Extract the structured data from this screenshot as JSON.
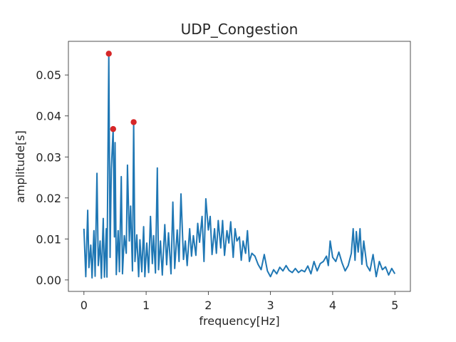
{
  "chart_data": {
    "type": "line",
    "title": "UDP_Congestion",
    "xlabel": "frequency[Hz]",
    "ylabel": "amplitude[s]",
    "xlim": [
      -0.25,
      5.25
    ],
    "ylim": [
      -0.0028,
      0.0582
    ],
    "x_ticks": [
      0,
      1,
      2,
      3,
      4,
      5
    ],
    "x_tick_labels": [
      "0",
      "1",
      "2",
      "3",
      "4",
      "5"
    ],
    "y_ticks": [
      0.0,
      0.01,
      0.02,
      0.03,
      0.04,
      0.05
    ],
    "y_tick_labels": [
      "0.00",
      "0.01",
      "0.02",
      "0.03",
      "0.04",
      "0.05"
    ],
    "grid": false,
    "series": [
      {
        "color": "#1f77b4",
        "x": [
          0.0,
          0.03,
          0.06,
          0.08,
          0.11,
          0.13,
          0.16,
          0.18,
          0.21,
          0.23,
          0.26,
          0.28,
          0.31,
          0.33,
          0.36,
          0.37,
          0.4,
          0.42,
          0.44,
          0.47,
          0.49,
          0.5,
          0.52,
          0.55,
          0.57,
          0.6,
          0.62,
          0.65,
          0.68,
          0.7,
          0.73,
          0.75,
          0.78,
          0.8,
          0.82,
          0.85,
          0.88,
          0.9,
          0.93,
          0.96,
          0.98,
          1.01,
          1.04,
          1.07,
          1.1,
          1.12,
          1.15,
          1.18,
          1.2,
          1.23,
          1.26,
          1.3,
          1.33,
          1.36,
          1.4,
          1.43,
          1.46,
          1.5,
          1.53,
          1.56,
          1.6,
          1.63,
          1.66,
          1.7,
          1.73,
          1.76,
          1.8,
          1.83,
          1.86,
          1.9,
          1.93,
          1.96,
          2.0,
          2.03,
          2.06,
          2.1,
          2.13,
          2.16,
          2.2,
          2.23,
          2.26,
          2.3,
          2.33,
          2.36,
          2.4,
          2.43,
          2.46,
          2.5,
          2.53,
          2.56,
          2.6,
          2.63,
          2.66,
          2.7,
          2.75,
          2.8,
          2.85,
          2.9,
          2.95,
          3.0,
          3.05,
          3.1,
          3.15,
          3.2,
          3.25,
          3.3,
          3.35,
          3.4,
          3.45,
          3.5,
          3.55,
          3.6,
          3.65,
          3.7,
          3.75,
          3.8,
          3.85,
          3.9,
          3.93,
          3.96,
          4.0,
          4.05,
          4.1,
          4.15,
          4.2,
          4.25,
          4.3,
          4.33,
          4.36,
          4.38,
          4.41,
          4.44,
          4.47,
          4.5,
          4.55,
          4.6,
          4.65,
          4.7,
          4.75,
          4.8,
          4.85,
          4.9,
          4.95,
          5.0
        ],
        "y": [
          0.0125,
          0.0008,
          0.017,
          0.003,
          0.0085,
          0.0005,
          0.012,
          0.0009,
          0.026,
          0.0035,
          0.0095,
          0.0004,
          0.015,
          0.0007,
          0.0125,
          0.0007,
          0.0552,
          0.0055,
          0.027,
          0.0368,
          0.0105,
          0.0335,
          0.0013,
          0.012,
          0.002,
          0.0252,
          0.0015,
          0.0108,
          0.0065,
          0.028,
          0.0095,
          0.018,
          0.0022,
          0.0385,
          0.0045,
          0.011,
          0.0008,
          0.0098,
          0.002,
          0.013,
          0.0008,
          0.009,
          0.0018,
          0.0155,
          0.004,
          0.0108,
          0.0017,
          0.0273,
          0.0025,
          0.0095,
          0.0012,
          0.0135,
          0.0037,
          0.0115,
          0.0015,
          0.019,
          0.0028,
          0.0122,
          0.0045,
          0.021,
          0.005,
          0.0095,
          0.0035,
          0.0125,
          0.0058,
          0.0108,
          0.006,
          0.0138,
          0.0092,
          0.0155,
          0.0045,
          0.0198,
          0.0122,
          0.0155,
          0.0062,
          0.0125,
          0.0065,
          0.0145,
          0.0078,
          0.0145,
          0.006,
          0.012,
          0.009,
          0.0142,
          0.0055,
          0.0125,
          0.0095,
          0.0105,
          0.0048,
          0.0095,
          0.0065,
          0.012,
          0.0045,
          0.0065,
          0.0058,
          0.0038,
          0.0025,
          0.0062,
          0.0022,
          0.0008,
          0.0025,
          0.0015,
          0.0031,
          0.0022,
          0.0035,
          0.0023,
          0.0018,
          0.0028,
          0.0018,
          0.0024,
          0.002,
          0.0034,
          0.0015,
          0.0045,
          0.0022,
          0.004,
          0.0045,
          0.0058,
          0.0035,
          0.0095,
          0.0055,
          0.0045,
          0.0068,
          0.0042,
          0.0022,
          0.0035,
          0.0065,
          0.0125,
          0.0048,
          0.0118,
          0.0068,
          0.0125,
          0.0038,
          0.0095,
          0.0035,
          0.0022,
          0.0062,
          0.0008,
          0.0045,
          0.0025,
          0.0032,
          0.0012,
          0.0028,
          0.0015
        ]
      }
    ],
    "highlighted_peaks": {
      "color": "#d62728",
      "x": [
        0.4,
        0.47,
        0.8
      ],
      "y": [
        0.0552,
        0.0368,
        0.0385
      ]
    }
  }
}
